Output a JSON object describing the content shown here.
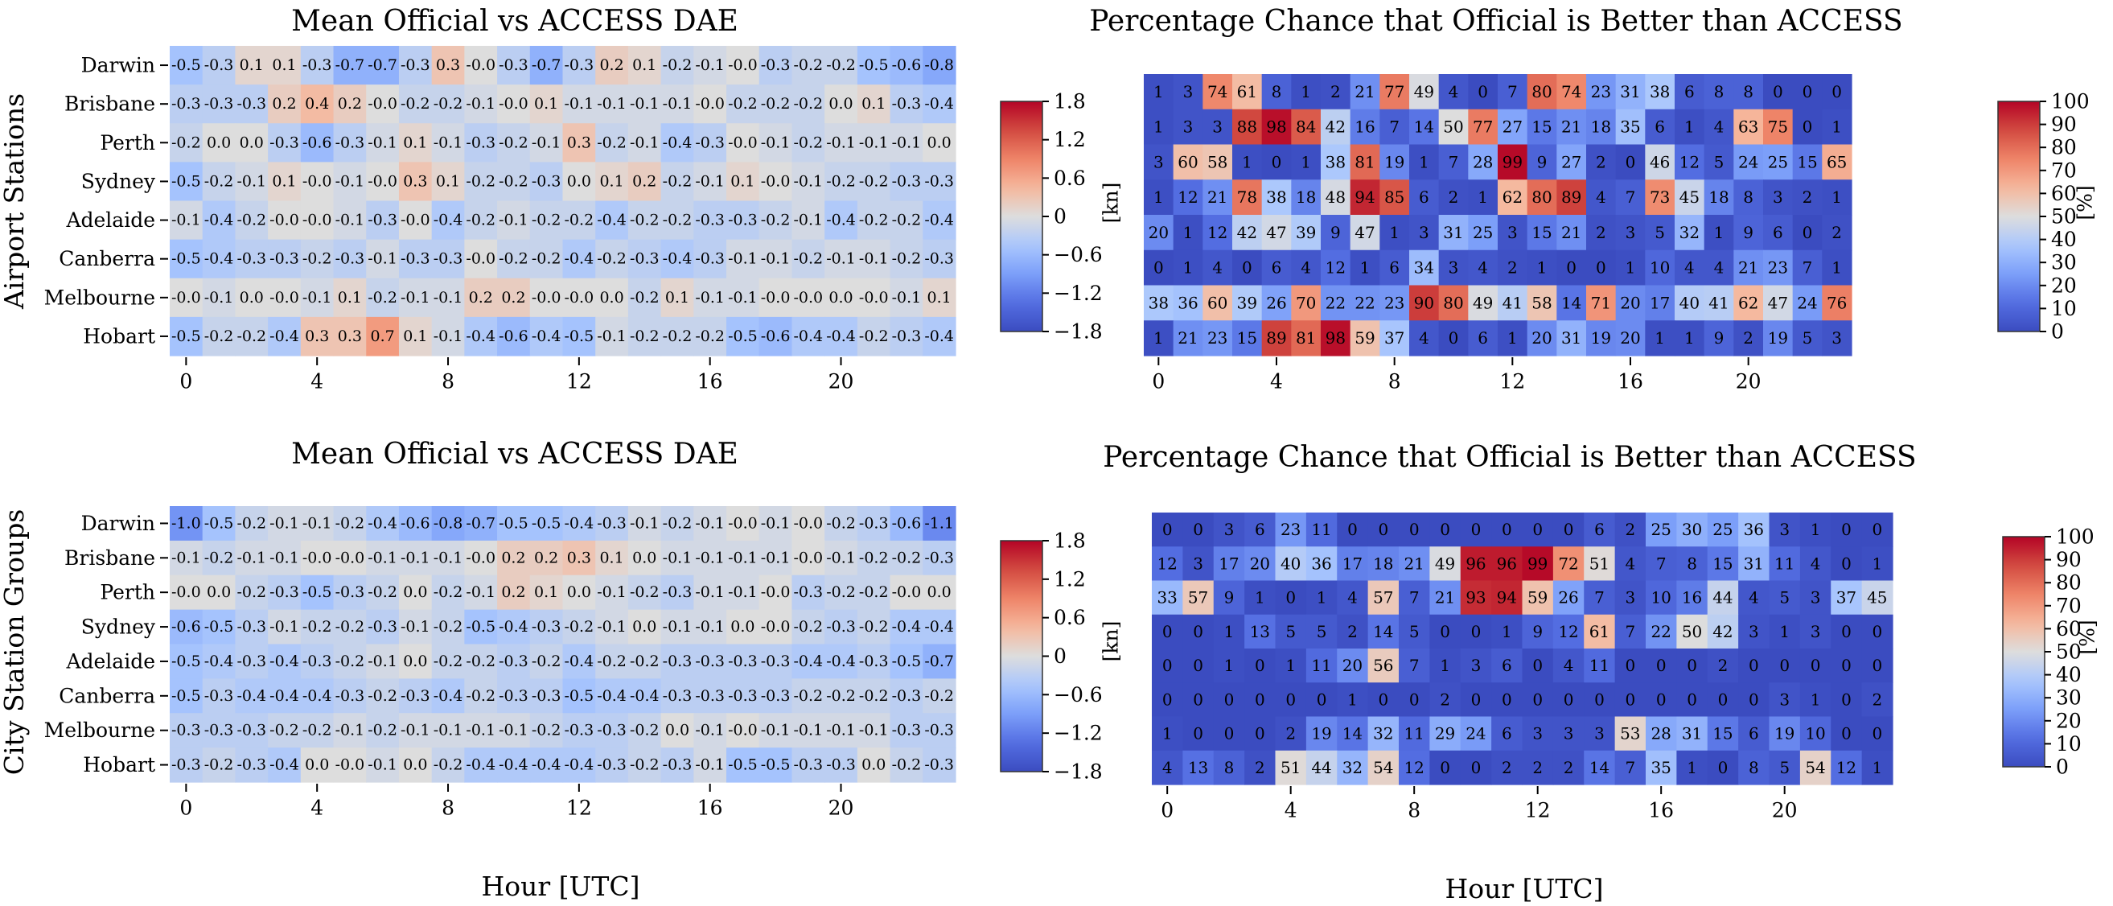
{
  "figure": {
    "row_labels": [
      "Airport Stations",
      "City Station Groups"
    ],
    "xlabel": "Hour [UTC]",
    "left_unit": "[kn]",
    "right_unit": "[%]",
    "stations": [
      "Darwin",
      "Brisbane",
      "Perth",
      "Sydney",
      "Adelaide",
      "Canberra",
      "Melbourne",
      "Hobart"
    ],
    "x_ticks": [
      0,
      4,
      8,
      12,
      16,
      20
    ],
    "dae_colorbar_ticks": [
      "1.8",
      "1.2",
      "0.6",
      "0",
      "−0.6",
      "−1.2",
      "−1.8"
    ],
    "pct_colorbar_ticks": [
      "100",
      "90",
      "80",
      "70",
      "60",
      "50",
      "40",
      "30",
      "20",
      "10",
      "0"
    ]
  },
  "colors": {
    "cmap": "coolwarm",
    "low": "#3b4cc0",
    "mid": "#dddddd",
    "high": "#b40426"
  },
  "chart_data": [
    {
      "type": "heatmap",
      "title": "Mean Official vs ACCESS DAE",
      "x": [
        0,
        1,
        2,
        3,
        4,
        5,
        6,
        7,
        8,
        9,
        10,
        11,
        12,
        13,
        14,
        15,
        16,
        17,
        18,
        19,
        20,
        21,
        22,
        23
      ],
      "y": [
        "Darwin",
        "Brisbane",
        "Perth",
        "Sydney",
        "Adelaide",
        "Canberra",
        "Melbourne",
        "Hobart"
      ],
      "vmin": -1.8,
      "vmax": 1.8,
      "values": [
        [
          -0.5,
          -0.3,
          0.1,
          0.1,
          -0.3,
          -0.7,
          -0.7,
          -0.3,
          0.3,
          -0.0,
          -0.3,
          -0.7,
          -0.3,
          0.2,
          0.1,
          -0.2,
          -0.1,
          -0.0,
          -0.3,
          -0.2,
          -0.2,
          -0.5,
          -0.6,
          -0.8
        ],
        [
          -0.3,
          -0.3,
          -0.3,
          0.2,
          0.4,
          0.2,
          -0.0,
          -0.2,
          -0.2,
          -0.1,
          -0.0,
          0.1,
          -0.1,
          -0.1,
          -0.1,
          -0.1,
          -0.0,
          -0.2,
          -0.2,
          -0.2,
          0.0,
          0.1,
          -0.3,
          -0.4
        ],
        [
          -0.2,
          0.0,
          0.0,
          -0.3,
          -0.6,
          -0.3,
          -0.1,
          0.1,
          -0.1,
          -0.3,
          -0.2,
          -0.1,
          0.3,
          -0.2,
          -0.1,
          -0.4,
          -0.3,
          -0.0,
          -0.1,
          -0.2,
          -0.1,
          -0.1,
          -0.1,
          0.0
        ],
        [
          -0.5,
          -0.2,
          -0.1,
          0.1,
          -0.0,
          -0.1,
          -0.0,
          0.3,
          0.1,
          -0.2,
          -0.2,
          -0.3,
          0.0,
          0.1,
          0.2,
          -0.2,
          -0.1,
          0.1,
          -0.0,
          -0.1,
          -0.2,
          -0.2,
          -0.3,
          -0.3
        ],
        [
          -0.1,
          -0.4,
          -0.2,
          -0.0,
          -0.0,
          -0.1,
          -0.3,
          -0.0,
          -0.4,
          -0.2,
          -0.1,
          -0.2,
          -0.2,
          -0.4,
          -0.2,
          -0.2,
          -0.3,
          -0.3,
          -0.2,
          -0.1,
          -0.4,
          -0.2,
          -0.2,
          -0.4
        ],
        [
          -0.5,
          -0.4,
          -0.3,
          -0.3,
          -0.2,
          -0.3,
          -0.1,
          -0.3,
          -0.3,
          -0.0,
          -0.2,
          -0.2,
          -0.4,
          -0.2,
          -0.3,
          -0.4,
          -0.3,
          -0.1,
          -0.1,
          -0.2,
          -0.1,
          -0.1,
          -0.2,
          -0.3
        ],
        [
          -0.0,
          -0.1,
          0.0,
          -0.0,
          -0.1,
          0.1,
          -0.2,
          -0.1,
          -0.1,
          0.2,
          0.2,
          -0.0,
          -0.0,
          0.0,
          -0.2,
          0.1,
          -0.1,
          -0.1,
          -0.0,
          -0.0,
          0.0,
          -0.0,
          -0.1,
          0.1
        ],
        [
          -0.5,
          -0.2,
          -0.2,
          -0.4,
          0.3,
          0.3,
          0.7,
          0.1,
          -0.1,
          -0.4,
          -0.6,
          -0.4,
          -0.5,
          -0.1,
          -0.2,
          -0.2,
          -0.2,
          -0.5,
          -0.6,
          -0.4,
          -0.4,
          -0.2,
          -0.3,
          -0.4
        ]
      ]
    },
    {
      "type": "heatmap",
      "title": "Percentage Chance that Official is Better than ACCESS",
      "x": [
        0,
        1,
        2,
        3,
        4,
        5,
        6,
        7,
        8,
        9,
        10,
        11,
        12,
        13,
        14,
        15,
        16,
        17,
        18,
        19,
        20,
        21,
        22,
        23
      ],
      "y": [
        "Darwin",
        "Brisbane",
        "Perth",
        "Sydney",
        "Adelaide",
        "Canberra",
        "Melbourne",
        "Hobart"
      ],
      "vmin": 0,
      "vmax": 100,
      "values": [
        [
          1,
          3,
          74,
          61,
          8,
          1,
          2,
          21,
          77,
          49,
          4,
          0,
          7,
          80,
          74,
          23,
          31,
          38,
          6,
          8,
          8,
          0,
          0,
          0
        ],
        [
          1,
          3,
          3,
          88,
          98,
          84,
          42,
          16,
          7,
          14,
          50,
          77,
          27,
          15,
          21,
          18,
          35,
          6,
          1,
          4,
          63,
          75,
          0,
          1
        ],
        [
          3,
          60,
          58,
          1,
          0,
          1,
          38,
          81,
          19,
          1,
          7,
          28,
          99,
          9,
          27,
          2,
          0,
          46,
          12,
          5,
          24,
          25,
          15,
          65
        ],
        [
          1,
          12,
          21,
          78,
          38,
          18,
          48,
          94,
          85,
          6,
          2,
          1,
          62,
          80,
          89,
          4,
          7,
          73,
          45,
          18,
          8,
          3,
          2,
          1
        ],
        [
          20,
          1,
          12,
          42,
          47,
          39,
          9,
          47,
          1,
          3,
          31,
          25,
          3,
          15,
          21,
          2,
          3,
          5,
          32,
          1,
          9,
          6,
          0,
          2
        ],
        [
          0,
          1,
          4,
          0,
          6,
          4,
          12,
          1,
          6,
          34,
          3,
          4,
          2,
          1,
          0,
          0,
          1,
          10,
          4,
          4,
          21,
          23,
          7,
          1
        ],
        [
          38,
          36,
          60,
          39,
          26,
          70,
          22,
          22,
          23,
          90,
          80,
          49,
          41,
          58,
          14,
          71,
          20,
          17,
          40,
          41,
          62,
          47,
          24,
          76
        ],
        [
          1,
          21,
          23,
          15,
          89,
          81,
          98,
          59,
          37,
          4,
          0,
          6,
          1,
          20,
          31,
          19,
          20,
          1,
          1,
          9,
          2,
          19,
          5,
          3
        ]
      ]
    },
    {
      "type": "heatmap",
      "title": "Mean Official vs ACCESS DAE",
      "x": [
        0,
        1,
        2,
        3,
        4,
        5,
        6,
        7,
        8,
        9,
        10,
        11,
        12,
        13,
        14,
        15,
        16,
        17,
        18,
        19,
        20,
        21,
        22,
        23
      ],
      "y": [
        "Darwin",
        "Brisbane",
        "Perth",
        "Sydney",
        "Adelaide",
        "Canberra",
        "Melbourne",
        "Hobart"
      ],
      "vmin": -1.8,
      "vmax": 1.8,
      "values": [
        [
          -1.0,
          -0.5,
          -0.2,
          -0.1,
          -0.1,
          -0.2,
          -0.4,
          -0.6,
          -0.8,
          -0.7,
          -0.5,
          -0.5,
          -0.4,
          -0.3,
          -0.1,
          -0.2,
          -0.1,
          -0.0,
          -0.1,
          -0.0,
          -0.2,
          -0.3,
          -0.6,
          -1.1
        ],
        [
          -0.1,
          -0.2,
          -0.1,
          -0.1,
          -0.0,
          -0.0,
          -0.1,
          -0.1,
          -0.1,
          -0.0,
          0.2,
          0.2,
          0.3,
          0.1,
          0.0,
          -0.1,
          -0.1,
          -0.1,
          -0.1,
          -0.0,
          -0.1,
          -0.2,
          -0.2,
          -0.3
        ],
        [
          -0.0,
          0.0,
          -0.2,
          -0.3,
          -0.5,
          -0.3,
          -0.2,
          0.0,
          -0.2,
          -0.1,
          0.2,
          0.1,
          0.0,
          -0.1,
          -0.2,
          -0.3,
          -0.1,
          -0.1,
          -0.0,
          -0.3,
          -0.2,
          -0.2,
          -0.0,
          0.0
        ],
        [
          -0.6,
          -0.5,
          -0.3,
          -0.1,
          -0.2,
          -0.2,
          -0.3,
          -0.1,
          -0.2,
          -0.5,
          -0.4,
          -0.3,
          -0.2,
          -0.1,
          0.0,
          -0.1,
          -0.1,
          0.0,
          -0.0,
          -0.2,
          -0.3,
          -0.2,
          -0.4,
          -0.4
        ],
        [
          -0.5,
          -0.4,
          -0.3,
          -0.4,
          -0.3,
          -0.2,
          -0.1,
          0.0,
          -0.2,
          -0.2,
          -0.3,
          -0.2,
          -0.4,
          -0.2,
          -0.2,
          -0.3,
          -0.3,
          -0.3,
          -0.3,
          -0.4,
          -0.4,
          -0.3,
          -0.5,
          -0.7
        ],
        [
          -0.5,
          -0.3,
          -0.4,
          -0.4,
          -0.4,
          -0.3,
          -0.2,
          -0.3,
          -0.4,
          -0.2,
          -0.3,
          -0.3,
          -0.5,
          -0.4,
          -0.4,
          -0.3,
          -0.3,
          -0.3,
          -0.3,
          -0.2,
          -0.2,
          -0.2,
          -0.3,
          -0.2
        ],
        [
          -0.3,
          -0.3,
          -0.3,
          -0.2,
          -0.2,
          -0.1,
          -0.2,
          -0.1,
          -0.1,
          -0.1,
          -0.1,
          -0.2,
          -0.3,
          -0.3,
          -0.2,
          0.0,
          -0.1,
          -0.0,
          -0.1,
          -0.1,
          -0.1,
          -0.1,
          -0.3,
          -0.3
        ],
        [
          -0.3,
          -0.2,
          -0.3,
          -0.4,
          0.0,
          -0.0,
          -0.1,
          0.0,
          -0.2,
          -0.4,
          -0.4,
          -0.4,
          -0.4,
          -0.3,
          -0.2,
          -0.3,
          -0.1,
          -0.5,
          -0.5,
          -0.3,
          -0.3,
          0.0,
          -0.2,
          -0.3
        ]
      ]
    },
    {
      "type": "heatmap",
      "title": "Percentage Chance that Official is Better than ACCESS",
      "x": [
        0,
        1,
        2,
        3,
        4,
        5,
        6,
        7,
        8,
        9,
        10,
        11,
        12,
        13,
        14,
        15,
        16,
        17,
        18,
        19,
        20,
        21,
        22,
        23
      ],
      "y": [
        "Darwin",
        "Brisbane",
        "Perth",
        "Sydney",
        "Adelaide",
        "Canberra",
        "Melbourne",
        "Hobart"
      ],
      "vmin": 0,
      "vmax": 100,
      "values": [
        [
          0,
          0,
          3,
          6,
          23,
          11,
          0,
          0,
          0,
          0,
          0,
          0,
          0,
          0,
          6,
          2,
          25,
          30,
          25,
          36,
          3,
          1,
          0,
          0
        ],
        [
          12,
          3,
          17,
          20,
          40,
          36,
          17,
          18,
          21,
          49,
          96,
          96,
          99,
          72,
          51,
          4,
          7,
          8,
          15,
          31,
          11,
          4,
          0,
          1
        ],
        [
          33,
          57,
          9,
          1,
          0,
          1,
          4,
          57,
          7,
          21,
          93,
          94,
          59,
          26,
          7,
          3,
          10,
          16,
          44,
          4,
          5,
          3,
          37,
          45
        ],
        [
          0,
          0,
          1,
          13,
          5,
          5,
          2,
          14,
          5,
          0,
          0,
          1,
          9,
          12,
          61,
          7,
          22,
          50,
          42,
          3,
          1,
          3,
          0,
          0
        ],
        [
          0,
          0,
          1,
          0,
          1,
          11,
          20,
          56,
          7,
          1,
          3,
          6,
          0,
          4,
          11,
          0,
          0,
          0,
          2,
          0,
          0,
          0,
          0,
          0
        ],
        [
          0,
          0,
          0,
          0,
          0,
          0,
          1,
          0,
          0,
          2,
          0,
          0,
          0,
          0,
          0,
          0,
          0,
          0,
          0,
          0,
          3,
          1,
          0,
          2
        ],
        [
          1,
          0,
          0,
          0,
          2,
          19,
          14,
          32,
          11,
          29,
          24,
          6,
          3,
          3,
          3,
          53,
          28,
          31,
          15,
          6,
          19,
          10,
          0,
          0
        ],
        [
          4,
          13,
          8,
          2,
          51,
          44,
          32,
          54,
          12,
          0,
          0,
          2,
          2,
          2,
          14,
          7,
          35,
          1,
          0,
          8,
          5,
          54,
          12,
          1
        ]
      ]
    }
  ]
}
